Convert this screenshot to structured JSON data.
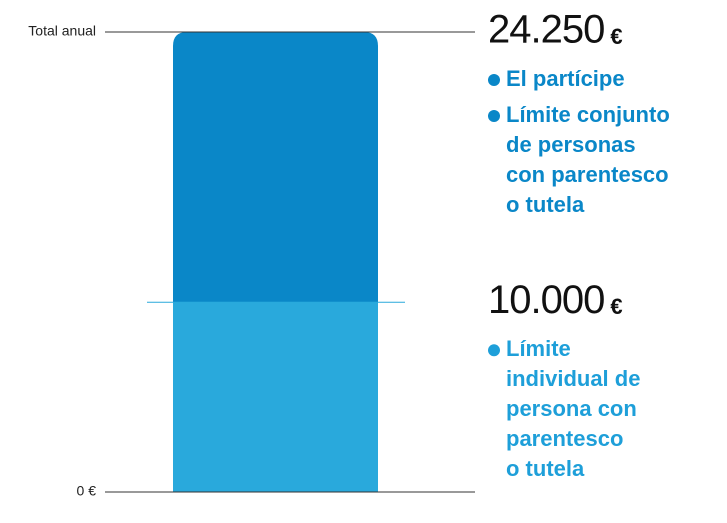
{
  "chart_data": {
    "type": "bar",
    "ylim": [
      0,
      24250
    ],
    "yticks": [
      {
        "value": 0,
        "label": "0 €"
      },
      {
        "value": 24250,
        "label": "Total anual"
      }
    ],
    "series": [
      {
        "name": "Límite individual de persona con parentesco o tutela",
        "color": "#29a9dc",
        "values": [
          10000
        ]
      },
      {
        "name": "Límite conjunto de personas con parentesco o tutela",
        "color": "#0a87c8",
        "values": [
          14250
        ]
      }
    ],
    "annotations": [
      {
        "value": 24250,
        "label": "24.250",
        "unit": "€",
        "color": "#0a87c8",
        "items": [
          [
            "El partícipe"
          ],
          [
            "Límite conjunto",
            "de personas",
            "con parentesco",
            "o tutela"
          ]
        ]
      },
      {
        "value": 10000,
        "label": "10.000",
        "unit": "€",
        "color": "#1e9fd9",
        "items": [
          [
            "Límite",
            "individual de",
            "persona con",
            "parentesco",
            "o tutela"
          ]
        ]
      }
    ]
  }
}
